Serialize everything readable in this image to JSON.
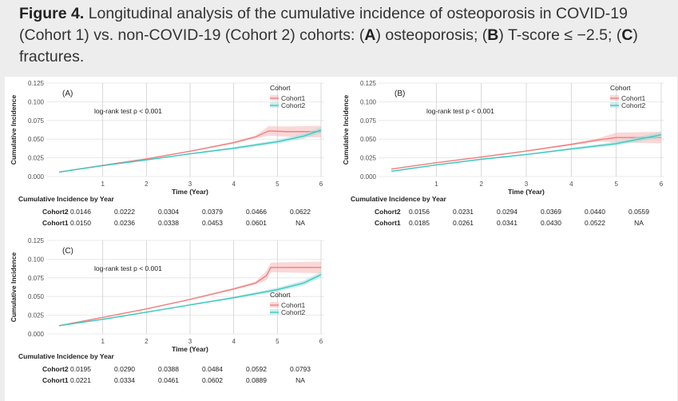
{
  "caption": {
    "figure_label": "Figure 4.",
    "text_1": " Longitudinal analysis of the cumulative incidence of osteoporosis in COVID-19 (Cohort 1) vs. non-COVID-19 (Cohort 2) cohorts: (",
    "label_a": "A",
    "text_2": ") osteoporosis; (",
    "label_b": "B",
    "text_3": ") T-score ≤ −2.5; (",
    "label_c": "C",
    "text_4": ") fractures."
  },
  "colors": {
    "cohort1": "#f08080",
    "cohort2": "#3cc8c0",
    "band1": "#f6b8b8",
    "band2": "#9fe0dc"
  },
  "chart_data": [
    {
      "type": "line",
      "panel": "(A)",
      "title": "",
      "xlabel": "Time (Year)",
      "ylabel": "Cumulative Incidence",
      "xlim": [
        0,
        6
      ],
      "ylim": [
        0,
        0.125
      ],
      "x_ticks": [
        1,
        2,
        3,
        4,
        5,
        6
      ],
      "y_ticks": [
        "0.000",
        "0.025",
        "0.050",
        "0.075",
        "0.100",
        "0.125"
      ],
      "annotation": "log-rank test p < 0.001",
      "legend": {
        "title": "Cohort",
        "labels": [
          "Cohort1",
          "Cohort2"
        ],
        "position": "top-right"
      },
      "series": [
        {
          "name": "Cohort1",
          "x": [
            0,
            1,
            2,
            3,
            4,
            4.5,
            4.8,
            5.2,
            6
          ],
          "values": [
            0.006,
            0.015,
            0.0236,
            0.0338,
            0.0453,
            0.053,
            0.061,
            0.0601,
            0.0601
          ]
        },
        {
          "name": "Cohort2",
          "x": [
            0,
            1,
            2,
            3,
            4,
            5,
            5.6,
            6
          ],
          "values": [
            0.006,
            0.0146,
            0.0222,
            0.0304,
            0.0379,
            0.0466,
            0.054,
            0.0622
          ]
        }
      ],
      "table": {
        "title": "Cumulative Incidence by Year",
        "rows": [
          {
            "label": "Cohort2",
            "values": [
              "0.0146",
              "0.0222",
              "0.0304",
              "0.0379",
              "0.0466",
              "0.0622"
            ]
          },
          {
            "label": "Cohort1",
            "values": [
              "0.0150",
              "0.0236",
              "0.0338",
              "0.0453",
              "0.0601",
              "NA"
            ]
          }
        ]
      }
    },
    {
      "type": "line",
      "panel": "(B)",
      "title": "",
      "xlabel": "Time (Year)",
      "ylabel": "Cumulative Incidence",
      "xlim": [
        0,
        6
      ],
      "ylim": [
        0,
        0.125
      ],
      "x_ticks": [
        1,
        2,
        3,
        4,
        5,
        6
      ],
      "y_ticks": [
        "0.000",
        "0.025",
        "0.050",
        "0.075",
        "0.100",
        "0.125"
      ],
      "annotation": "log-rank test p < 0.001",
      "legend": {
        "title": "Cohort",
        "labels": [
          "Cohort1",
          "Cohort2"
        ],
        "position": "top-right"
      },
      "series": [
        {
          "name": "Cohort1",
          "x": [
            0,
            1,
            2,
            3,
            4,
            4.6,
            5,
            6
          ],
          "values": [
            0.01,
            0.0185,
            0.0261,
            0.0341,
            0.043,
            0.049,
            0.0522,
            0.0522
          ]
        },
        {
          "name": "Cohort2",
          "x": [
            0,
            1,
            2,
            3,
            4,
            5,
            6
          ],
          "values": [
            0.007,
            0.0156,
            0.0231,
            0.0294,
            0.0369,
            0.044,
            0.0559
          ]
        }
      ],
      "table": {
        "title": "Cumulative Incidence by Year",
        "rows": [
          {
            "label": "Cohort2",
            "values": [
              "0.0156",
              "0.0231",
              "0.0294",
              "0.0369",
              "0.0440",
              "0.0559"
            ]
          },
          {
            "label": "Cohort1",
            "values": [
              "0.0185",
              "0.0261",
              "0.0341",
              "0.0430",
              "0.0522",
              "NA"
            ]
          }
        ]
      }
    },
    {
      "type": "line",
      "panel": "(C)",
      "title": "",
      "xlabel": "Time (Year)",
      "ylabel": "Cumulative Incidence",
      "xlim": [
        0,
        6
      ],
      "ylim": [
        0,
        0.125
      ],
      "x_ticks": [
        1,
        2,
        3,
        4,
        5,
        6
      ],
      "y_ticks": [
        "0.000",
        "0.025",
        "0.050",
        "0.075",
        "0.100",
        "0.125"
      ],
      "annotation": "log-rank test p < 0.001",
      "legend": {
        "title": "Cohort",
        "labels": [
          "Cohort1",
          "Cohort2"
        ],
        "position": "bottom-right"
      },
      "series": [
        {
          "name": "Cohort1",
          "x": [
            0,
            1,
            2,
            3,
            4,
            4.5,
            4.75,
            4.85,
            6
          ],
          "values": [
            0.011,
            0.0221,
            0.0334,
            0.0461,
            0.0602,
            0.068,
            0.078,
            0.0889,
            0.0889
          ]
        },
        {
          "name": "Cohort2",
          "x": [
            0,
            1,
            2,
            3,
            4,
            5,
            5.6,
            6
          ],
          "values": [
            0.011,
            0.0195,
            0.029,
            0.0388,
            0.0484,
            0.0592,
            0.068,
            0.0793
          ]
        }
      ],
      "table": {
        "title": "Cumulative Incidence by Year",
        "rows": [
          {
            "label": "Cohort2",
            "values": [
              "0.0195",
              "0.0290",
              "0.0388",
              "0.0484",
              "0.0592",
              "0.0793"
            ]
          },
          {
            "label": "Cohort1",
            "values": [
              "0.0221",
              "0.0334",
              "0.0461",
              "0.0602",
              "0.0889",
              "NA"
            ]
          }
        ]
      }
    }
  ]
}
